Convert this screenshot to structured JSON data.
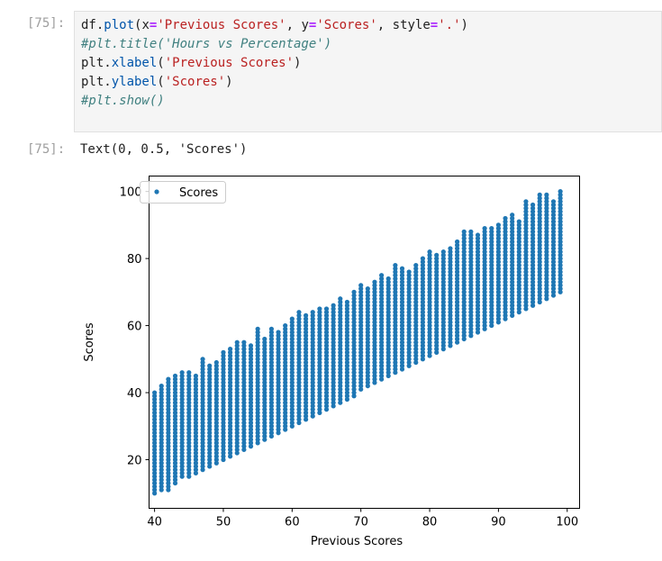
{
  "cell": {
    "input_prompt": "[75]:",
    "output_prompt": "[75]:",
    "code": {
      "l1": {
        "a": "df.",
        "fn": "plot",
        "b": "(x",
        "eq1": "=",
        "s1": "'Previous Scores'",
        "c": ", y",
        "eq2": "=",
        "s2": "'Scores'",
        "d": ", style",
        "eq3": "=",
        "s3": "'.'",
        "e": ")"
      },
      "l2": "#plt.title('Hours vs Percentage')",
      "l3": {
        "a": "plt.",
        "fn": "xlabel",
        "b": "(",
        "s": "'Previous Scores'",
        "c": ")"
      },
      "l4": {
        "a": "plt.",
        "fn": "ylabel",
        "b": "(",
        "s": "'Scores'",
        "c": ")"
      },
      "l5": "#plt.show()"
    },
    "output_text": "Text(0, 0.5, 'Scores')"
  },
  "chart_data": {
    "type": "scatter",
    "title": "",
    "xlabel": "Previous Scores",
    "ylabel": "Scores",
    "xlim": [
      39.2,
      101.8
    ],
    "ylim": [
      5.5,
      104.6
    ],
    "xticks": [
      40,
      50,
      60,
      70,
      80,
      90,
      100
    ],
    "yticks": [
      20,
      40,
      60,
      80,
      100
    ],
    "legend": {
      "label": "Scores",
      "placement": "top-left"
    },
    "color": "#1f77b4",
    "note": "Each integer x has points spanning y_min..y_max",
    "x": [
      40,
      41,
      42,
      43,
      44,
      45,
      46,
      47,
      48,
      49,
      50,
      51,
      52,
      53,
      54,
      55,
      56,
      57,
      58,
      59,
      60,
      61,
      62,
      63,
      64,
      65,
      66,
      67,
      68,
      69,
      70,
      71,
      72,
      73,
      74,
      75,
      76,
      77,
      78,
      79,
      80,
      81,
      82,
      83,
      84,
      85,
      86,
      87,
      88,
      89,
      90,
      91,
      92,
      93,
      94,
      95,
      96,
      97,
      98,
      99
    ],
    "y_min": [
      10,
      11,
      11,
      13,
      15,
      15,
      16,
      17,
      18,
      19,
      20,
      21,
      22,
      23,
      24,
      25,
      26,
      27,
      28,
      29,
      30,
      31,
      32,
      33,
      34,
      35,
      36,
      37,
      38,
      39,
      41,
      42,
      43,
      44,
      45,
      46,
      47,
      48,
      49,
      50,
      51,
      52,
      53,
      54,
      55,
      56,
      57,
      58,
      59,
      60,
      61,
      62,
      63,
      64,
      65,
      66,
      67,
      68,
      69,
      70
    ],
    "y_max": [
      40,
      42,
      44,
      45,
      46,
      46,
      45,
      50,
      48,
      49,
      52,
      53,
      55,
      55,
      54,
      59,
      56,
      59,
      58,
      60,
      62,
      64,
      63,
      64,
      65,
      65,
      66,
      68,
      67,
      70,
      72,
      71,
      73,
      75,
      74,
      78,
      77,
      76,
      78,
      80,
      82,
      81,
      82,
      83,
      85,
      88,
      88,
      87,
      89,
      89,
      90,
      92,
      93,
      91,
      97,
      96,
      99,
      99,
      97,
      100
    ]
  }
}
